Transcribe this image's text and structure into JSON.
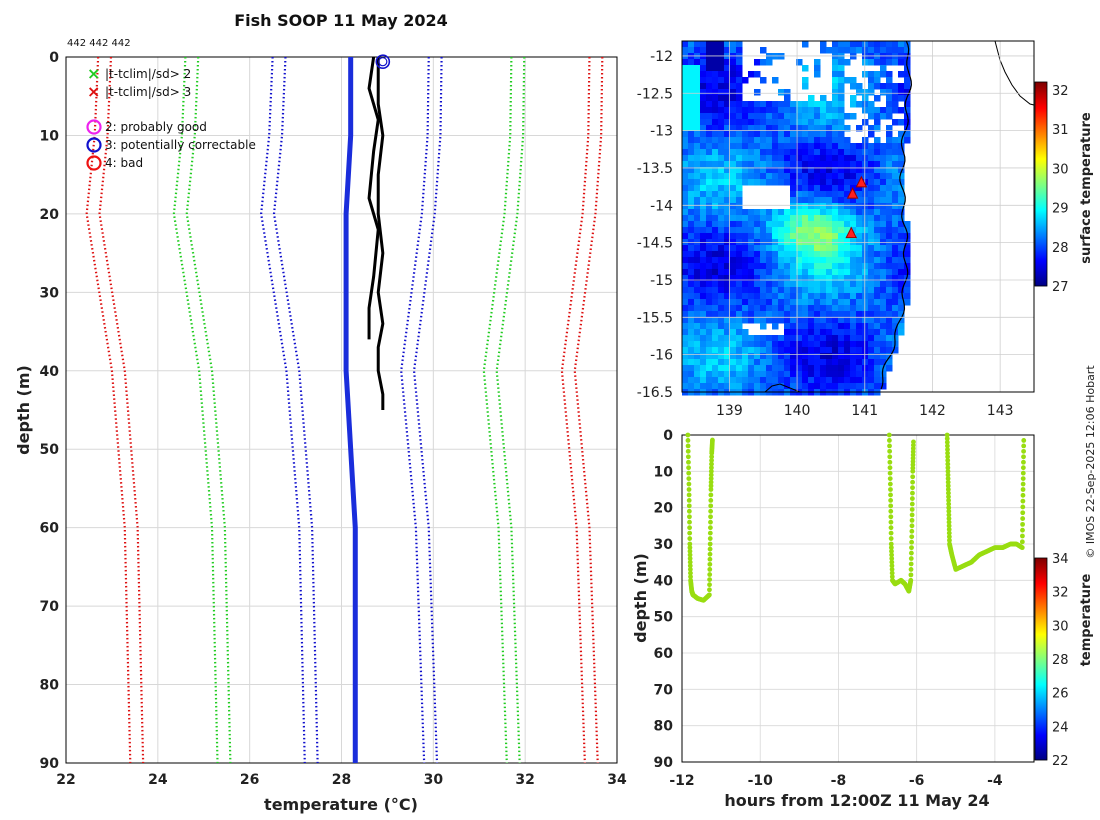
{
  "chart_data": [
    {
      "id": "profile",
      "type": "line",
      "title": "Fish SOOP 11 May 2024",
      "corner_label": "442 442 442",
      "xlabel": "temperature (°C)",
      "ylabel": "depth (m)",
      "xlim": [
        22,
        34
      ],
      "ylim": [
        0,
        90
      ],
      "xticks": [
        22,
        24,
        26,
        28,
        30,
        32,
        34
      ],
      "yticks": [
        0,
        10,
        20,
        30,
        40,
        50,
        60,
        70,
        80,
        90
      ],
      "legend": [
        {
          "marker": "x",
          "color": "#22cc22",
          "label": "|t-tclim|/sd> 2"
        },
        {
          "marker": "x",
          "color": "#dd1111",
          "label": "|t-tclim|/sd> 3"
        },
        {
          "marker": "o",
          "color": "#ee22ee",
          "label": "2: probably good"
        },
        {
          "marker": "o",
          "color": "#1111cc",
          "label": "3: potentially correctable"
        },
        {
          "marker": "o",
          "color": "#ee1111",
          "label": "4: bad"
        }
      ],
      "climatology_mean": {
        "depth": [
          0,
          10,
          20,
          30,
          40,
          50,
          60,
          70,
          80,
          90
        ],
        "temp": [
          28.2,
          28.2,
          28.1,
          28.1,
          28.1,
          28.2,
          28.3,
          28.3,
          28.3,
          28.3
        ]
      },
      "series": [
        {
          "name": "clim-2sd-left",
          "color": "#22cc22",
          "style": "dotted",
          "offset": -3.6
        },
        {
          "name": "clim-2sd-right",
          "color": "#22cc22",
          "style": "dotted",
          "offset": 3.5
        },
        {
          "name": "clim-3sd-left",
          "color": "#dd1111",
          "style": "dotted",
          "offset": -5.5
        },
        {
          "name": "clim-3sd-right",
          "color": "#dd1111",
          "style": "dotted",
          "offset": 5.2
        },
        {
          "name": "clim-1sd-left",
          "color": "#1111cc",
          "style": "dotted",
          "offset": -1.7
        },
        {
          "name": "clim-1sd-right",
          "color": "#1111cc",
          "style": "dotted",
          "offset": 1.7
        }
      ],
      "observed_profiles": [
        {
          "depth": [
            0,
            3,
            6,
            10,
            15,
            20,
            25,
            30,
            34,
            37,
            40,
            43,
            45
          ],
          "temp": [
            28.8,
            28.8,
            28.8,
            28.9,
            28.8,
            28.8,
            28.9,
            28.8,
            28.9,
            28.8,
            28.8,
            28.9,
            28.9
          ]
        },
        {
          "depth": [
            0,
            4,
            8,
            12,
            18,
            22,
            28,
            32,
            36
          ],
          "temp": [
            28.7,
            28.6,
            28.8,
            28.7,
            28.6,
            28.8,
            28.7,
            28.6,
            28.6
          ]
        }
      ],
      "flag_marker": {
        "temp": 28.9,
        "depth": 0.6
      }
    },
    {
      "id": "map",
      "type": "heatmap",
      "xticks": [
        139,
        140,
        141,
        142,
        143
      ],
      "yticks": [
        -12,
        -12.5,
        -13,
        -13.5,
        -14,
        -14.5,
        -15,
        -15.5,
        -16,
        -16.5
      ],
      "xlim": [
        138.3,
        143.5
      ],
      "ylim": [
        -16.5,
        -11.8
      ],
      "colorbar_label": "surface temperature",
      "colorbar_ticks": [
        27,
        28,
        29,
        30,
        31,
        32
      ],
      "colorbar_range": [
        27,
        32.2
      ],
      "stations": [
        {
          "lon": 140.95,
          "lat": -13.7
        },
        {
          "lon": 140.82,
          "lat": -13.85
        },
        {
          "lon": 140.8,
          "lat": -14.38
        }
      ]
    },
    {
      "id": "timeseries",
      "type": "scatter",
      "xlabel": "hours from 12:00Z 11 May 24",
      "ylabel": "depth (m)",
      "xlim": [
        -12,
        -3
      ],
      "ylim": [
        0,
        90
      ],
      "xticks": [
        -12,
        -10,
        -8,
        -6,
        -4
      ],
      "yticks": [
        0,
        10,
        20,
        30,
        40,
        50,
        60,
        70,
        80,
        90
      ],
      "colorbar_label": "temperature",
      "colorbar_ticks": [
        22,
        24,
        26,
        28,
        30,
        32,
        34
      ],
      "colorbar_range": [
        22,
        34
      ],
      "point_color": "#99dd11",
      "segments": [
        {
          "t": [
            -11.85,
            -11.82,
            -11.8,
            -11.78,
            -11.75,
            -11.72,
            -11.6,
            -11.45,
            -11.3,
            -11.28,
            -11.26,
            -11.24,
            -11.22
          ],
          "d": [
            0,
            15,
            30,
            40,
            43,
            44,
            45,
            45.5,
            44,
            30,
            15,
            5,
            1
          ]
        },
        {
          "t": [
            -6.7,
            -6.67,
            -6.65,
            -6.62,
            -6.55,
            -6.4,
            -6.3,
            -6.2,
            -6.15,
            -6.12,
            -6.1,
            -6.08
          ],
          "d": [
            0,
            15,
            30,
            40,
            41,
            40,
            41,
            43,
            40,
            25,
            10,
            1
          ]
        },
        {
          "t": [
            -5.22,
            -5.2,
            -5.18,
            -5.16,
            -5.1,
            -5.0,
            -4.8,
            -4.6,
            -4.4,
            -4.2,
            -4.0,
            -3.8,
            -3.6,
            -3.45,
            -3.3,
            -3.28,
            -3.26
          ],
          "d": [
            0,
            10,
            20,
            30,
            33,
            37,
            36,
            35,
            33,
            32,
            31,
            31,
            30,
            30,
            31,
            15,
            0
          ]
        }
      ]
    }
  ],
  "copyright": "© IMOS 22-Sep-2025 12:06 Hobart"
}
